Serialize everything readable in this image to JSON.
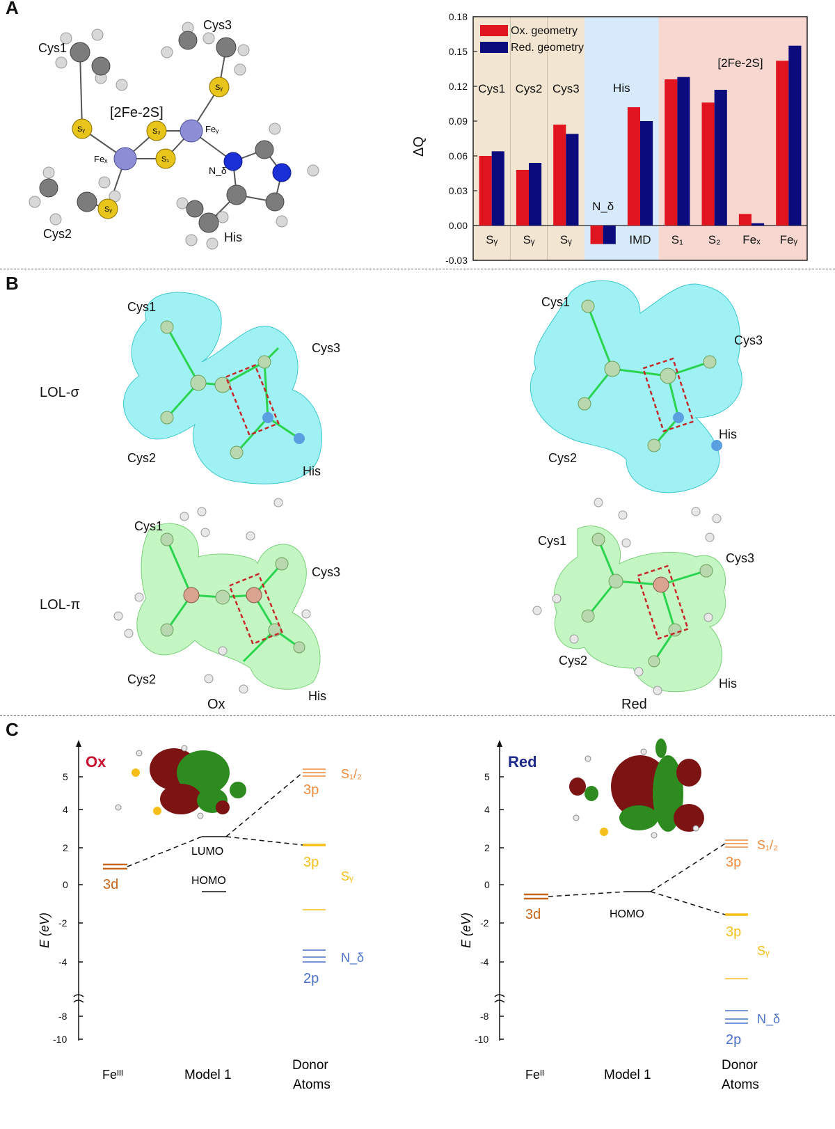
{
  "panels": {
    "a": "A",
    "b": "B",
    "c": "C"
  },
  "panelA": {
    "mol_labels": {
      "cys1": "Cys1",
      "cys2": "Cys2",
      "cys3": "Cys3",
      "his": "His",
      "cluster": "[2Fe-2S]",
      "s2": "S₂",
      "s1": "S₁",
      "sg1": "Sᵧ",
      "sg2": "Sᵧ",
      "sg3": "Sᵧ",
      "fex": "Feₓ",
      "fey": "Feᵧ",
      "nd": "N_δ"
    },
    "colors": {
      "s_atom": "#e8c51a",
      "fe_atom": "#8d8dd6",
      "n_atom": "#1b2fd6",
      "c_atom": "#7c7c7c",
      "h_atom": "#d5d5d5"
    }
  },
  "chart_data": {
    "type": "bar",
    "categories": [
      "Sᵧ",
      "Sᵧ",
      "Sᵧ",
      "N_δ",
      "IMD",
      "S₁",
      "S₂",
      "Feₓ",
      "Feᵧ"
    ],
    "series": [
      {
        "name": "Ox. geometry",
        "color": "#e0151f",
        "values": [
          0.06,
          0.048,
          0.087,
          -0.016,
          0.102,
          0.126,
          0.106,
          0.01,
          0.142
        ]
      },
      {
        "name": "Red. geometry",
        "color": "#0b0b7d",
        "values": [
          0.064,
          0.054,
          0.079,
          -0.016,
          0.09,
          0.128,
          0.117,
          0.002,
          0.155
        ]
      }
    ],
    "ylabel": "ΔQ",
    "ylim": [
      -0.03,
      0.18
    ],
    "yticks": [
      "-0.03",
      "0.00",
      "0.03",
      "0.06",
      "0.09",
      "0.12",
      "0.15",
      "0.18"
    ],
    "region_labels": [
      "Cys1",
      "Cys2",
      "Cys3",
      "His",
      "[2Fe-2S]"
    ],
    "region_colors": [
      "#f2e6d2",
      "#d6eafb",
      "#f7d7cf"
    ],
    "legend_position": "top-left"
  },
  "panelB": {
    "row_labels": {
      "sigma": "LOL-σ",
      "pi": "LOL-π"
    },
    "col_labels": {
      "ox": "Ox",
      "red": "Red"
    },
    "mol_labels": {
      "cys1": "Cys1",
      "cys2": "Cys2",
      "cys3": "Cys3",
      "his": "His"
    },
    "colors": {
      "sigma": "#52e6ea",
      "pi": "#9cf09c",
      "box": "#c62828"
    }
  },
  "panelC": {
    "ox": {
      "title": "Ox",
      "title_color": "#c8102e",
      "yticks": [
        "5",
        "4",
        "2",
        "0",
        "-2",
        "-4",
        "-8",
        "-10"
      ],
      "ylabel": "E (eV)",
      "fe_label": "3d",
      "lumo": "LUMO",
      "homo": "HOMO",
      "s12_3p": "3p",
      "s12": "S₁/₂",
      "sg_3p": "3p",
      "sg": "Sᵧ",
      "n_2p": "2p",
      "n": "N_δ",
      "x_labels": [
        "Feᴵᴵᴵ",
        "Model 1",
        "Donor",
        "Atoms"
      ]
    },
    "red": {
      "title": "Red",
      "title_color": "#1f2b8a",
      "yticks": [
        "5",
        "4",
        "2",
        "0",
        "-2",
        "-4",
        "-8",
        "-10"
      ],
      "ylabel": "E (eV)",
      "fe_label": "3d",
      "homo": "HOMO",
      "s12_3p": "3p",
      "s12": "S₁/₂",
      "sg_3p": "3p",
      "sg": "Sᵧ",
      "n_2p": "2p",
      "n": "N_δ",
      "x_labels": [
        "Feᴵᴵ",
        "Model 1",
        "Donor",
        "Atoms"
      ]
    },
    "level_colors": {
      "fe": "#c8661a",
      "s12": "#f08a3a",
      "sg": "#f5be19",
      "n": "#4a72c8",
      "model": "#111111"
    },
    "orbital_colors": {
      "pos": "#2e8b1f",
      "neg": "#7c1414"
    }
  }
}
